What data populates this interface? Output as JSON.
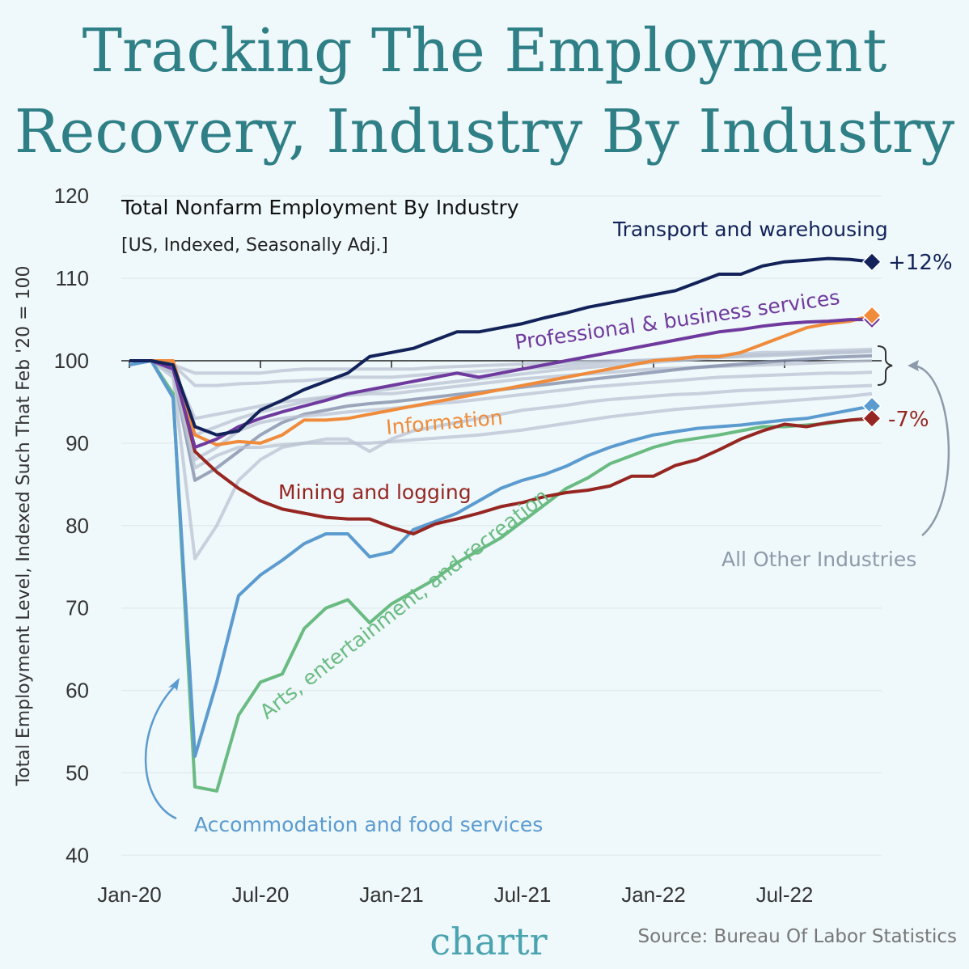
{
  "title_lines": [
    "Tracking The Employment",
    "Recovery, Industry By Industry"
  ],
  "chart_data": {
    "type": "line",
    "subtitle": "Total Nonfarm Employment By Industry",
    "subtitle2": "[US, Indexed, Seasonally Adj.]",
    "ylabel": "Total Employment Level, Indexed Such That Feb '20 = 100",
    "xlabel": "",
    "ylim": [
      40,
      120
    ],
    "yticks": [
      "40",
      "50",
      "60",
      "70",
      "80",
      "90",
      "100",
      "110",
      "120"
    ],
    "x_start": "Jan-20",
    "x_end": "Nov-22",
    "xticks": [
      "Jan-20",
      "Jul-20",
      "Jan-21",
      "Jul-21",
      "Jan-22",
      "Jul-22"
    ],
    "grid": true,
    "series": [
      {
        "name": "Transport and warehousing",
        "color": "#13235a",
        "end_label": "+12%",
        "values": [
          100,
          100,
          99.5,
          92,
          91,
          91.5,
          94,
          95.2,
          96.5,
          97.5,
          98.5,
          100.5,
          101,
          101.5,
          102.5,
          103.5,
          103.5,
          104,
          104.5,
          105.2,
          105.8,
          106.5,
          107,
          107.5,
          108,
          108.5,
          109.5,
          110.5,
          110.5,
          111.5,
          112,
          112.2,
          112.4,
          112.3,
          112
        ]
      },
      {
        "name": "Professional & business services",
        "color": "#6f3a9e",
        "end_label": "",
        "values": [
          100,
          100,
          99,
          89.5,
          90.5,
          92,
          93,
          93.8,
          94.5,
          95.2,
          96,
          96.5,
          97,
          97.5,
          98,
          98.5,
          98,
          98.5,
          99,
          99.5,
          100,
          100.5,
          101,
          101.5,
          102,
          102.5,
          103,
          103.5,
          103.8,
          104.2,
          104.5,
          104.7,
          104.8,
          105,
          105
        ]
      },
      {
        "name": "Information",
        "color": "#ef8b3a",
        "end_label": "",
        "values": [
          100,
          100,
          100,
          91,
          89.8,
          90.2,
          90,
          91,
          92.8,
          92.8,
          93,
          93.5,
          94,
          94.5,
          95,
          95.5,
          96,
          96.5,
          97,
          97.5,
          98,
          98.5,
          99,
          99.5,
          100,
          100.2,
          100.5,
          100.5,
          101,
          102,
          103,
          104,
          104.5,
          104.8,
          105.5
        ]
      },
      {
        "name": "Mining and logging",
        "color": "#962622",
        "end_label": "-7%",
        "values": [
          100,
          100,
          99.5,
          89,
          86.5,
          84.5,
          83,
          82,
          81.5,
          81,
          80.8,
          80.8,
          79.8,
          79,
          80.2,
          80.8,
          81.5,
          82.3,
          82.8,
          83.5,
          84,
          84.3,
          84.8,
          86,
          86,
          87.3,
          88,
          89.2,
          90.5,
          91.5,
          92.3,
          92,
          92.5,
          92.8,
          93
        ]
      },
      {
        "name": "Accommodation and food services",
        "color": "#5b9bd0",
        "end_label": "",
        "values": [
          99.5,
          100,
          95.5,
          52,
          61,
          71.5,
          74,
          75.8,
          77.8,
          79,
          79,
          76.2,
          76.8,
          79.5,
          80.5,
          81.5,
          83,
          84.5,
          85.5,
          86.2,
          87.2,
          88.5,
          89.5,
          90.3,
          91,
          91.4,
          91.8,
          92,
          92.2,
          92.5,
          92.8,
          93,
          93.5,
          94,
          94.5
        ]
      },
      {
        "name": "Arts, entertainment, and recreation",
        "color": "#6abb82",
        "end_label": "",
        "values": [
          100,
          100,
          96,
          48.3,
          47.8,
          57,
          61,
          62,
          67.5,
          70,
          71,
          68.2,
          70.5,
          72,
          73.5,
          75.5,
          77,
          78.5,
          80.5,
          82.5,
          84.5,
          85.8,
          87.5,
          88.5,
          89.5,
          90.2,
          90.6,
          91,
          91.5,
          92,
          92,
          92.2,
          92.4,
          92.8,
          93
        ]
      }
    ],
    "other_group_label": "All Other Industries",
    "other_color": "#b9c3d2",
    "other_series": [
      [
        100,
        100,
        99.5,
        98.5,
        98.5,
        98.5,
        98.5,
        98.8,
        99,
        99,
        99,
        99,
        99,
        99,
        99.2,
        99.3,
        99.4,
        99.5,
        99.6,
        99.7,
        99.8,
        99.9,
        100,
        100,
        100.1,
        100.2,
        100.3,
        100.4,
        100.5,
        100.6,
        100.7,
        100.8,
        100.9,
        101,
        101.2
      ],
      [
        100,
        100,
        99.5,
        97,
        97,
        97.2,
        97.3,
        97.5,
        97.6,
        97.8,
        98,
        98,
        98,
        98.2,
        98.4,
        98.5,
        98.7,
        98.9,
        99,
        99.2,
        99.4,
        99.6,
        99.8,
        100,
        100.1,
        100.3,
        100.5,
        100.6,
        100.8,
        101,
        101,
        101.1,
        101.2,
        101.3,
        101.4
      ],
      [
        100,
        100,
        99,
        93,
        93.5,
        94,
        94.5,
        95,
        95.3,
        95.6,
        95.8,
        96,
        96,
        96.3,
        96.6,
        96.9,
        97.2,
        97.5,
        97.8,
        98,
        98.2,
        98.4,
        98.6,
        98.8,
        99,
        99.1,
        99.2,
        99.3,
        99.4,
        99.5,
        99.6,
        99.7,
        99.8,
        99.9,
        100
      ],
      [
        100,
        100,
        98.5,
        85.5,
        87,
        89,
        91,
        92.5,
        93.5,
        94,
        94.5,
        94.8,
        95,
        95.3,
        95.6,
        95.9,
        96.2,
        96.5,
        96.8,
        97.1,
        97.4,
        97.7,
        98,
        98.3,
        98.6,
        98.9,
        99.2,
        99.4,
        99.6,
        99.8,
        100,
        100.2,
        100.4,
        100.5,
        100.6
      ],
      [
        100,
        100,
        98,
        76,
        80,
        85.5,
        88,
        89.5,
        90,
        90.5,
        90.5,
        89,
        90.5,
        91.5,
        92,
        92.5,
        93,
        93.5,
        94,
        94.3,
        94.6,
        95,
        95.3,
        95.5,
        95.7,
        95.9,
        96,
        96.2,
        96.4,
        96.5,
        96.6,
        96.7,
        96.8,
        96.9,
        97
      ],
      [
        100,
        100,
        98.5,
        87,
        88.5,
        89.5,
        89.5,
        89.8,
        90,
        90,
        90,
        90,
        90.2,
        90.4,
        90.6,
        90.8,
        91,
        91.3,
        91.6,
        92,
        92.4,
        92.8,
        93.2,
        93.5,
        93.8,
        94.1,
        94.3,
        94.5,
        94.7,
        94.9,
        95.1,
        95.3,
        95.5,
        95.7,
        96
      ],
      [
        100,
        100,
        98.7,
        88,
        89.5,
        91.5,
        92.5,
        93,
        93.3,
        93.5,
        93.8,
        94,
        94.2,
        94.5,
        94.8,
        95,
        95.3,
        95.6,
        95.9,
        96.2,
        96.5,
        96.8,
        97,
        97.2,
        97.4,
        97.6,
        97.8,
        98,
        98.1,
        98.2,
        98.3,
        98.4,
        98.5,
        98.5,
        98.6
      ],
      [
        100,
        100,
        99,
        91,
        92,
        93,
        93.8,
        94.4,
        95,
        95.5,
        96,
        96.3,
        96.6,
        96.9,
        97.2,
        97.5,
        97.8,
        98.1,
        98.4,
        98.7,
        99,
        99.2,
        99.4,
        99.6,
        99.8,
        100,
        100.2,
        100.4,
        100.6,
        100.7,
        100.8,
        100.9,
        101,
        101,
        101.1
      ]
    ]
  },
  "brand": "chartr",
  "source": "Source: Bureau Of Labor Statistics"
}
